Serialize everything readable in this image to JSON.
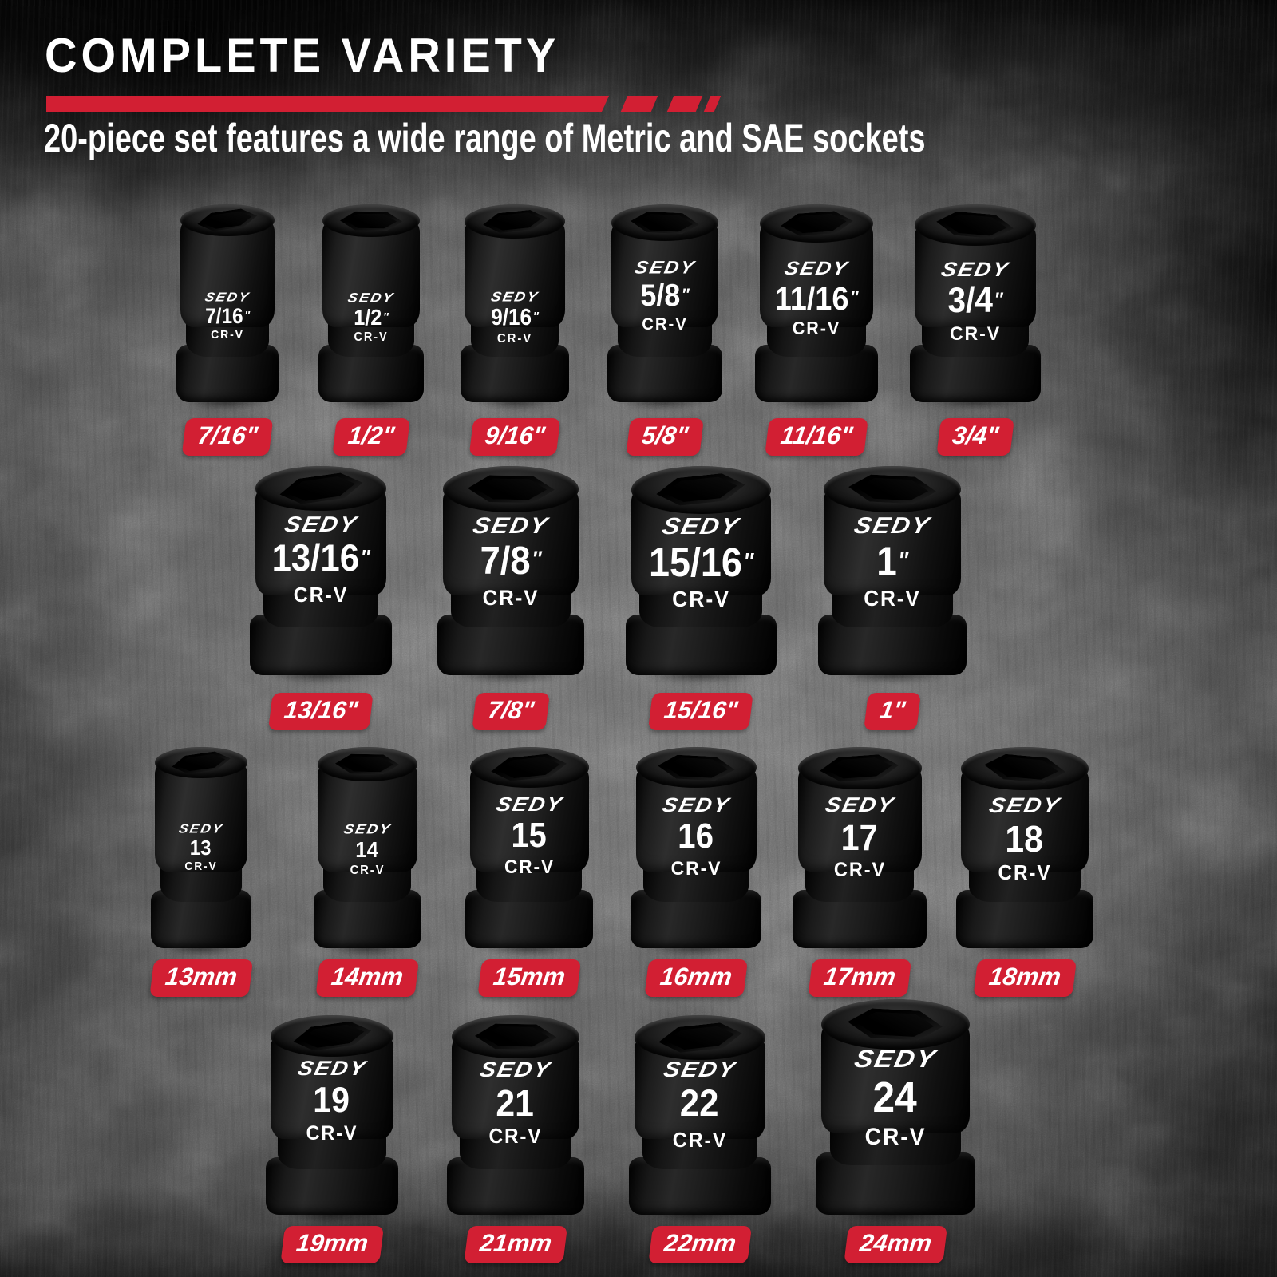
{
  "header": {
    "title": "COMPLETE VARIETY",
    "subtitle": "20-piece set features a wide range of Metric and SAE sockets"
  },
  "brand_logo": "SEDY",
  "steel_marking": "CR-V",
  "colors": {
    "accent_red": "#d21f33",
    "socket_black": "#1c1c1c",
    "text_white": "#ffffff"
  },
  "rows": [
    {
      "sockets": [
        {
          "engraved_size": "7/16",
          "inch_mark": "″",
          "badge": "7/16\""
        },
        {
          "engraved_size": "1/2",
          "inch_mark": "″",
          "badge": "1/2\""
        },
        {
          "engraved_size": "9/16",
          "inch_mark": "″",
          "badge": "9/16\""
        },
        {
          "engraved_size": "5/8",
          "inch_mark": "″",
          "badge": "5/8\""
        },
        {
          "engraved_size": "11/16",
          "inch_mark": "″",
          "badge": "11/16\""
        },
        {
          "engraved_size": "3/4",
          "inch_mark": "″",
          "badge": "3/4\""
        }
      ]
    },
    {
      "sockets": [
        {
          "engraved_size": "13/16",
          "inch_mark": "″",
          "badge": "13/16\""
        },
        {
          "engraved_size": "7/8",
          "inch_mark": "″",
          "badge": "7/8\""
        },
        {
          "engraved_size": "15/16",
          "inch_mark": "″",
          "badge": "15/16\""
        },
        {
          "engraved_size": "1",
          "inch_mark": "″",
          "badge": "1\""
        }
      ]
    },
    {
      "sockets": [
        {
          "engraved_size": "13",
          "inch_mark": "",
          "badge": "13mm"
        },
        {
          "engraved_size": "14",
          "inch_mark": "",
          "badge": "14mm"
        },
        {
          "engraved_size": "15",
          "inch_mark": "",
          "badge": "15mm"
        },
        {
          "engraved_size": "16",
          "inch_mark": "",
          "badge": "16mm"
        },
        {
          "engraved_size": "17",
          "inch_mark": "",
          "badge": "17mm"
        },
        {
          "engraved_size": "18",
          "inch_mark": "",
          "badge": "18mm"
        }
      ]
    },
    {
      "sockets": [
        {
          "engraved_size": "19",
          "inch_mark": "",
          "badge": "19mm"
        },
        {
          "engraved_size": "21",
          "inch_mark": "",
          "badge": "21mm"
        },
        {
          "engraved_size": "22",
          "inch_mark": "",
          "badge": "22mm"
        },
        {
          "engraved_size": "24",
          "inch_mark": "",
          "badge": "24mm"
        }
      ]
    }
  ]
}
